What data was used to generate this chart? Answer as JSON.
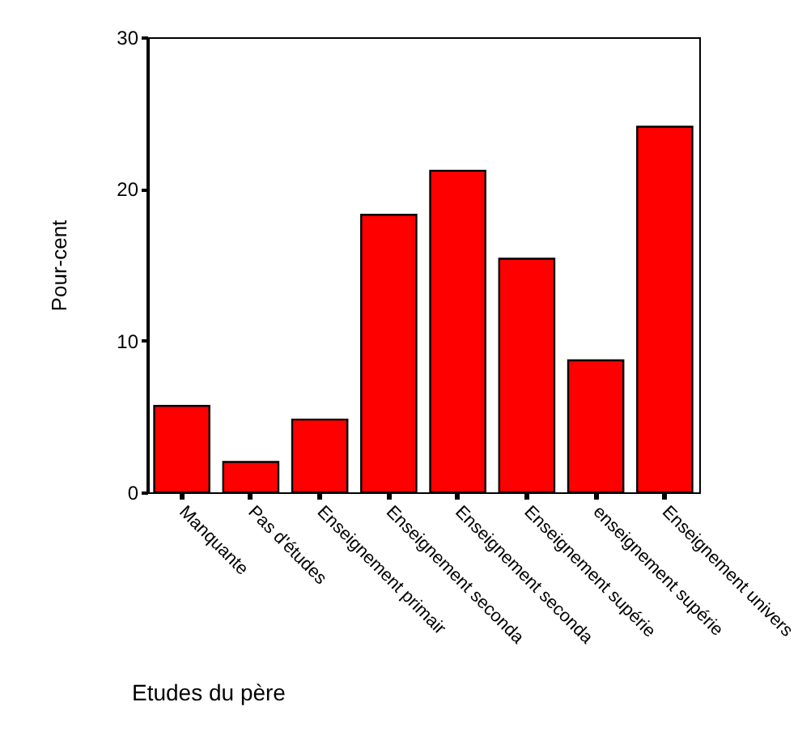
{
  "chart_data": {
    "type": "bar",
    "xlabel": "Etudes du père",
    "ylabel": "Pour-cent",
    "categories": [
      "Manquante",
      "Pas d'études",
      "Enseignement primair",
      "Enseignement seconda",
      "Enseignement seconda",
      "Enseignement supérie",
      "enseignement supérie",
      "Enseignement univers"
    ],
    "values": [
      5.7,
      2.0,
      4.8,
      18.3,
      21.2,
      15.4,
      8.7,
      24.1
    ],
    "color": "#ff0000",
    "ylim": [
      0,
      30
    ],
    "yticks": [
      0,
      10,
      20,
      30
    ],
    "grid": false
  }
}
